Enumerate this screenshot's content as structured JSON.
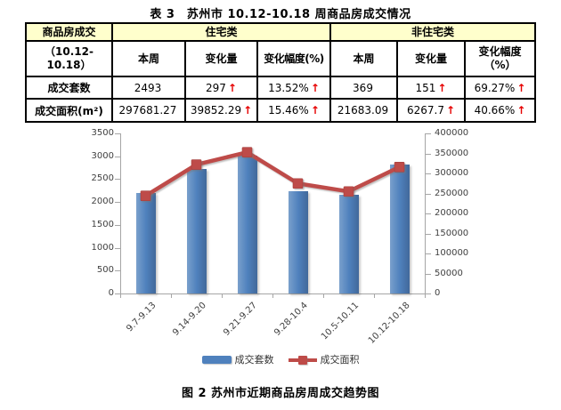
{
  "table": {
    "title": "表 3　苏州市 10.12-10.18 周商品房成交情况",
    "corner_header": "商品房成交",
    "corner_subheader": "（10.12-10.18）",
    "group_headers": [
      "住宅类",
      "非住宅类"
    ],
    "sub_headers": [
      "本周",
      "变化量",
      "变化幅度(%)",
      "本周",
      "变化量",
      "变化幅度\n（%）"
    ],
    "rows": [
      {
        "label": "成交套数",
        "cells": [
          {
            "value": "2493",
            "arrow": ""
          },
          {
            "value": "297",
            "arrow": "↑"
          },
          {
            "value": "13.52%",
            "arrow": "↑"
          },
          {
            "value": "369",
            "arrow": ""
          },
          {
            "value": "151",
            "arrow": "↑"
          },
          {
            "value": "69.27%",
            "arrow": "↑"
          }
        ]
      },
      {
        "label": "成交面积(m²)",
        "cells": [
          {
            "value": "297681.27",
            "arrow": ""
          },
          {
            "value": "39852.29",
            "arrow": "↑"
          },
          {
            "value": "15.46%",
            "arrow": "↑"
          },
          {
            "value": "21683.09",
            "arrow": ""
          },
          {
            "value": "6267.7",
            "arrow": "↑"
          },
          {
            "value": "40.66%",
            "arrow": "↑"
          }
        ]
      }
    ],
    "header_bg": "#FFFFCC",
    "arrow_color": "#E60000"
  },
  "chart_data": {
    "type": "bar",
    "subtype": "bar+line dual axis",
    "categories": [
      "9.7-9.13",
      "9.14-9.20",
      "9.21-9.27",
      "9.28-10.4",
      "10.5-10.11",
      "10.12-10.18"
    ],
    "series": [
      {
        "name": "成交套数",
        "type": "bar",
        "axis": "left",
        "color": "#4F81BD",
        "values": [
          2200,
          2720,
          3015,
          2235,
          2160,
          2820
        ]
      },
      {
        "name": "成交面积",
        "type": "line",
        "axis": "right",
        "color": "#BE4B48",
        "values": [
          244000,
          322000,
          353000,
          275000,
          255000,
          316000
        ]
      }
    ],
    "left_axis": {
      "min": 0,
      "max": 3500,
      "step": 500
    },
    "right_axis": {
      "min": 0,
      "max": 400000,
      "step": 50000
    },
    "grid": false,
    "legend_position": "bottom"
  },
  "caption": "图 2 苏州市近期商品房周成交趋势图"
}
